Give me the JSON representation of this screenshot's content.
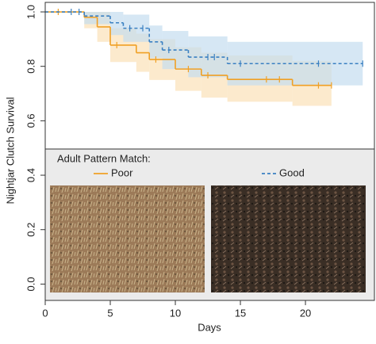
{
  "chart_data": {
    "type": "survival-step",
    "x_label": "Days",
    "y_label": "Nightjar Clutch Survival",
    "xlim": [
      0,
      25.3
    ],
    "ylim": [
      -0.06,
      1.035
    ],
    "xticks": [
      0,
      5,
      10,
      15,
      20
    ],
    "yticks": [
      {
        "value": 0,
        "label": "0.0"
      },
      {
        "value": 0.2,
        "label": "0.2"
      },
      {
        "value": 0.4,
        "label": "0.4"
      },
      {
        "value": 0.6,
        "label": "0.6"
      },
      {
        "value": 0.8,
        "label": "0.8"
      },
      {
        "value": 1,
        "label": "1.0"
      }
    ],
    "legend_title": "Adult Pattern Match:",
    "series": [
      {
        "name": "Poor",
        "color": "#f0a025",
        "band_color": "#fbe1b8",
        "dash": false,
        "x": [
          0,
          3,
          4,
          5,
          7,
          8,
          10,
          12,
          14,
          19
        ],
        "values": [
          1,
          0.98,
          0.945,
          0.878,
          0.85,
          0.825,
          0.79,
          0.767,
          0.752,
          0.73
        ],
        "lower": [
          1,
          0.94,
          0.89,
          0.816,
          0.78,
          0.75,
          0.71,
          0.685,
          0.67,
          0.655
        ],
        "upper": [
          1,
          1,
          1,
          0.94,
          0.92,
          0.9,
          0.87,
          0.85,
          0.84,
          0.82
        ],
        "censored": [
          1,
          5.5,
          8.5,
          11,
          12.5,
          17,
          18,
          21,
          22
        ]
      },
      {
        "name": "Good",
        "color": "#3a80c2",
        "band_color": "#c5ddf0",
        "dash": true,
        "x": [
          0,
          3,
          5,
          6,
          8,
          9,
          11,
          14
        ],
        "values": [
          1,
          0.985,
          0.96,
          0.94,
          0.89,
          0.86,
          0.834,
          0.81
        ],
        "lower": [
          1,
          0.955,
          0.915,
          0.89,
          0.83,
          0.79,
          0.76,
          0.73
        ],
        "upper": [
          1,
          1,
          1,
          0.99,
          0.95,
          0.93,
          0.91,
          0.89
        ],
        "censored": [
          2,
          2.6,
          6.5,
          7.5,
          9.5,
          12.5,
          13,
          15,
          21,
          24.4
        ]
      }
    ]
  }
}
